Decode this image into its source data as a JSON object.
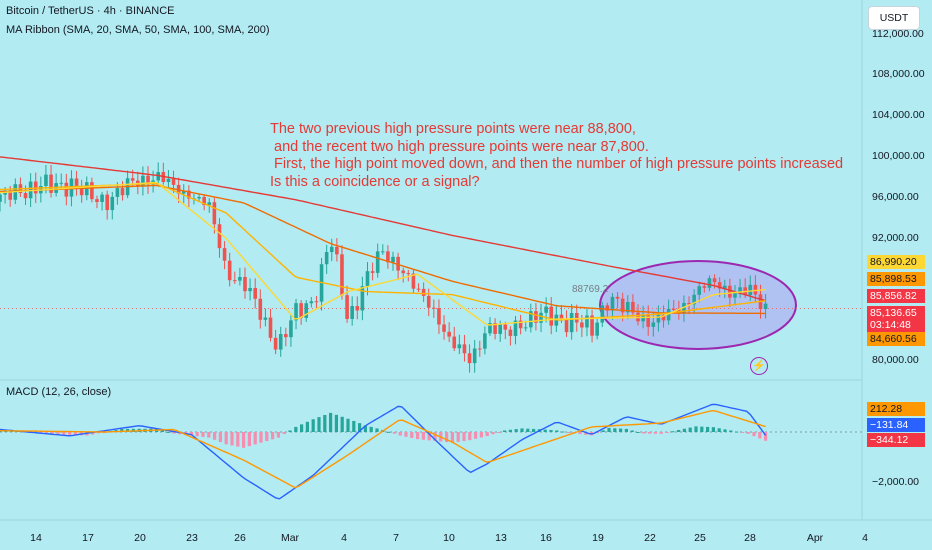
{
  "header": {
    "symbol_line": "Bitcoin / TetherUS · 4h · BINANCE",
    "indicator_line": "MA Ribbon (SMA, 20, SMA, 50, SMA, 100, SMA, 200)"
  },
  "currency_button": "USDT",
  "annotation_text": "The two previous high pressure points were near 88,800,\n and the recent two high pressure points were near 87,800.\n First, the high point moved down, and then the number of high pressure points increased\nIs this a coincidence or a signal?",
  "marker_label": "88769.2",
  "macd_label": "MACD (12, 26, close)",
  "price_axis": {
    "ticks": [
      {
        "label": "112,000.00",
        "value": 112000
      },
      {
        "label": "108,000.00",
        "value": 108000
      },
      {
        "label": "104,000.00",
        "value": 104000
      },
      {
        "label": "100,000.00",
        "value": 100000
      },
      {
        "label": "96,000.00",
        "value": 96000
      },
      {
        "label": "92,000.00",
        "value": 92000
      },
      {
        "label": "80,000.00",
        "value": 80000
      }
    ],
    "badges": [
      {
        "label": "86,990.20",
        "color": "#fdd835",
        "text_color": "#131722"
      },
      {
        "label": "85,898.53",
        "color": "#ff9800",
        "text_color": "#131722"
      },
      {
        "label": "85,856.82",
        "color": "#f23645",
        "text_color": "#ffffff"
      },
      {
        "label": "85,136.65",
        "color": "#f23645",
        "text_color": "#ffffff"
      },
      {
        "label": "03:14:48",
        "color": "#f23645",
        "text_color": "#ffffff"
      },
      {
        "label": "84,660.56",
        "color": "#ff9800",
        "text_color": "#131722"
      }
    ]
  },
  "macd_axis": {
    "ticks": [
      {
        "label": "−2,000.00",
        "value": -2000
      }
    ],
    "badges": [
      {
        "label": "212.28",
        "color": "#ff9800",
        "text_color": "#131722"
      },
      {
        "label": "−131.84",
        "color": "#2962ff",
        "text_color": "#ffffff"
      },
      {
        "label": "−344.12",
        "color": "#f23645",
        "text_color": "#ffffff"
      }
    ]
  },
  "time_axis": [
    "14",
    "17",
    "20",
    "23",
    "26",
    "Mar",
    "4",
    "7",
    "10",
    "13",
    "16",
    "19",
    "22",
    "25",
    "28",
    "Apr",
    "4"
  ],
  "colors": {
    "background": "#b2ebf2",
    "up": "#26a69a",
    "down": "#ef5350",
    "sma20": "#fdd835",
    "sma50": "#ffb300",
    "sma100": "#ef6c00",
    "sma200": "#e53935",
    "macd_line": "#2962ff",
    "signal_line": "#ff9800",
    "highlight_ellipse": "#9c27b0"
  },
  "chart_data": [
    {
      "type": "candlestick",
      "title": "Bitcoin / TetherUS · 4h · BINANCE",
      "ylim": [
        78500,
        114000
      ],
      "x_date_range": [
        "Feb 12",
        "Mar 28"
      ],
      "price_path": [
        {
          "date": "Feb 12",
          "price": 95600
        },
        {
          "date": "Feb 13",
          "price": 97000
        },
        {
          "date": "Feb 14",
          "price": 96800
        },
        {
          "date": "Feb 15",
          "price": 97200
        },
        {
          "date": "Feb 16",
          "price": 97500
        },
        {
          "date": "Feb 17",
          "price": 96200
        },
        {
          "date": "Feb 18",
          "price": 95800
        },
        {
          "date": "Feb 19",
          "price": 96600
        },
        {
          "date": "Feb 20",
          "price": 97800
        },
        {
          "date": "Feb 21",
          "price": 98200
        },
        {
          "date": "Feb 22",
          "price": 96800
        },
        {
          "date": "Feb 23",
          "price": 96500
        },
        {
          "date": "Feb 24",
          "price": 95000
        },
        {
          "date": "Feb 25",
          "price": 89000
        },
        {
          "date": "Feb 26",
          "price": 87500
        },
        {
          "date": "Feb 27",
          "price": 84500
        },
        {
          "date": "Feb 28",
          "price": 81500
        },
        {
          "date": "Mar 1",
          "price": 84500
        },
        {
          "date": "Mar 2",
          "price": 86000
        },
        {
          "date": "Mar 3",
          "price": 92000
        },
        {
          "date": "Mar 4",
          "price": 84000
        },
        {
          "date": "Mar 5",
          "price": 88000
        },
        {
          "date": "Mar 6",
          "price": 90500
        },
        {
          "date": "Mar 7",
          "price": 89500
        },
        {
          "date": "Mar 8",
          "price": 86500
        },
        {
          "date": "Mar 9",
          "price": 85000
        },
        {
          "date": "Mar 10",
          "price": 81500
        },
        {
          "date": "Mar 11",
          "price": 80000
        },
        {
          "date": "Mar 12",
          "price": 83500
        },
        {
          "date": "Mar 13",
          "price": 82500
        },
        {
          "date": "Mar 14",
          "price": 84000
        },
        {
          "date": "Mar 15",
          "price": 84300
        },
        {
          "date": "Mar 16",
          "price": 84200
        },
        {
          "date": "Mar 17",
          "price": 84000
        },
        {
          "date": "Mar 18",
          "price": 82800
        },
        {
          "date": "Mar 19",
          "price": 86500
        },
        {
          "date": "Mar 20",
          "price": 84800
        },
        {
          "date": "Mar 21",
          "price": 84200
        },
        {
          "date": "Mar 22",
          "price": 84000
        },
        {
          "date": "Mar 23",
          "price": 85000
        },
        {
          "date": "Mar 24",
          "price": 87000
        },
        {
          "date": "Mar 25",
          "price": 87500
        },
        {
          "date": "Mar 26",
          "price": 87000
        },
        {
          "date": "Mar 27",
          "price": 86800
        },
        {
          "date": "Mar 28",
          "price": 85100
        }
      ],
      "series": [
        {
          "name": "SMA 200",
          "color": "#e53935",
          "values": [
            {
              "date": "Feb 12",
              "price": 100000
            },
            {
              "date": "Feb 21",
              "price": 98200
            },
            {
              "date": "Mar 1",
              "price": 95800
            },
            {
              "date": "Mar 10",
              "price": 92300
            },
            {
              "date": "Mar 19",
              "price": 89300
            },
            {
              "date": "Mar 25",
              "price": 87400
            },
            {
              "date": "Mar 28",
              "price": 85900
            }
          ]
        },
        {
          "name": "SMA 100",
          "color": "#ef6c00",
          "values": [
            {
              "date": "Feb 12",
              "price": 96600
            },
            {
              "date": "Feb 21",
              "price": 97200
            },
            {
              "date": "Feb 26",
              "price": 95500
            },
            {
              "date": "Mar 3",
              "price": 91500
            },
            {
              "date": "Mar 10",
              "price": 87800
            },
            {
              "date": "Mar 16",
              "price": 85400
            },
            {
              "date": "Mar 22",
              "price": 84700
            },
            {
              "date": "Mar 28",
              "price": 84660
            }
          ]
        },
        {
          "name": "SMA 50",
          "color": "#ffb300",
          "values": [
            {
              "date": "Feb 12",
              "price": 96800
            },
            {
              "date": "Feb 21",
              "price": 97400
            },
            {
              "date": "Feb 25",
              "price": 94500
            },
            {
              "date": "Mar 1",
              "price": 88200
            },
            {
              "date": "Mar 5",
              "price": 86800
            },
            {
              "date": "Mar 10",
              "price": 86500
            },
            {
              "date": "Mar 16",
              "price": 84000
            },
            {
              "date": "Mar 22",
              "price": 84600
            },
            {
              "date": "Mar 28",
              "price": 85898
            }
          ]
        },
        {
          "name": "SMA 20",
          "color": "#fdd835",
          "values": [
            {
              "date": "Feb 12",
              "price": 96500
            },
            {
              "date": "Feb 21",
              "price": 97500
            },
            {
              "date": "Feb 25",
              "price": 92000
            },
            {
              "date": "Mar 1",
              "price": 84000
            },
            {
              "date": "Mar 4",
              "price": 86800
            },
            {
              "date": "Mar 8",
              "price": 88500
            },
            {
              "date": "Mar 12",
              "price": 83500
            },
            {
              "date": "Mar 16",
              "price": 84100
            },
            {
              "date": "Mar 22",
              "price": 84300
            },
            {
              "date": "Mar 25",
              "price": 86500
            },
            {
              "date": "Mar 28",
              "price": 86990
            }
          ]
        }
      ]
    },
    {
      "type": "bar",
      "title": "MACD (12, 26, close)",
      "ylim": [
        -2900,
        1500
      ],
      "histogram": [
        {
          "date": "Feb 13",
          "value": 60
        },
        {
          "date": "Feb 15",
          "value": -90
        },
        {
          "date": "Feb 17",
          "value": -140
        },
        {
          "date": "Feb 19",
          "value": 120
        },
        {
          "date": "Feb 21",
          "value": 130
        },
        {
          "date": "Feb 22",
          "value": -60
        },
        {
          "date": "Feb 24",
          "value": -220
        },
        {
          "date": "Feb 25",
          "value": -480
        },
        {
          "date": "Feb 26",
          "value": -620
        },
        {
          "date": "Feb 27",
          "value": -420
        },
        {
          "date": "Feb 28",
          "value": -220
        },
        {
          "date": "Mar 1",
          "value": 200
        },
        {
          "date": "Mar 2",
          "value": 500
        },
        {
          "date": "Mar 3",
          "value": 750
        },
        {
          "date": "Mar 4",
          "value": 520
        },
        {
          "date": "Mar 5",
          "value": 260
        },
        {
          "date": "Mar 6",
          "value": 80
        },
        {
          "date": "Mar 7",
          "value": -140
        },
        {
          "date": "Mar 8",
          "value": -280
        },
        {
          "date": "Mar 10",
          "value": -420
        },
        {
          "date": "Mar 11",
          "value": -320
        },
        {
          "date": "Mar 12",
          "value": -160
        },
        {
          "date": "Mar 13",
          "value": 60
        },
        {
          "date": "Mar 14",
          "value": 140
        },
        {
          "date": "Mar 15",
          "value": 110
        },
        {
          "date": "Mar 16",
          "value": 60
        },
        {
          "date": "Mar 17",
          "value": -60
        },
        {
          "date": "Mar 18",
          "value": -130
        },
        {
          "date": "Mar 19",
          "value": 160
        },
        {
          "date": "Mar 20",
          "value": 120
        },
        {
          "date": "Mar 21",
          "value": -60
        },
        {
          "date": "Mar 22",
          "value": -70
        },
        {
          "date": "Mar 23",
          "value": 80
        },
        {
          "date": "Mar 24",
          "value": 220
        },
        {
          "date": "Mar 25",
          "value": 190
        },
        {
          "date": "Mar 26",
          "value": 60
        },
        {
          "date": "Mar 27",
          "value": -70
        },
        {
          "date": "Mar 28",
          "value": -344
        }
      ],
      "series": [
        {
          "name": "MACD",
          "color": "#2962ff",
          "values": [
            {
              "date": "Feb 12",
              "value": 100
            },
            {
              "date": "Feb 16",
              "value": -150
            },
            {
              "date": "Feb 20",
              "value": 250
            },
            {
              "date": "Feb 23",
              "value": -100
            },
            {
              "date": "Feb 26",
              "value": -1800
            },
            {
              "date": "Feb 28",
              "value": -2650
            },
            {
              "date": "Mar 2",
              "value": -1700
            },
            {
              "date": "Mar 5",
              "value": 250
            },
            {
              "date": "Mar 7",
              "value": 1050
            },
            {
              "date": "Mar 9",
              "value": -300
            },
            {
              "date": "Mar 11",
              "value": -1600
            },
            {
              "date": "Mar 12",
              "value": -1250
            },
            {
              "date": "Mar 14",
              "value": -300
            },
            {
              "date": "Mar 16",
              "value": 400
            },
            {
              "date": "Mar 18",
              "value": -100
            },
            {
              "date": "Mar 20",
              "value": 600
            },
            {
              "date": "Mar 22",
              "value": 300
            },
            {
              "date": "Mar 25",
              "value": 1100
            },
            {
              "date": "Mar 27",
              "value": 800
            },
            {
              "date": "Mar 28",
              "value": -132
            }
          ]
        },
        {
          "name": "Signal",
          "color": "#ff9800",
          "values": [
            {
              "date": "Feb 12",
              "value": 50
            },
            {
              "date": "Feb 18",
              "value": 0
            },
            {
              "date": "Feb 22",
              "value": 100
            },
            {
              "date": "Feb 26",
              "value": -1100
            },
            {
              "date": "Mar 1",
              "value": -2200
            },
            {
              "date": "Mar 4",
              "value": -900
            },
            {
              "date": "Mar 7",
              "value": 500
            },
            {
              "date": "Mar 10",
              "value": -400
            },
            {
              "date": "Mar 12",
              "value": -1200
            },
            {
              "date": "Mar 15",
              "value": -500
            },
            {
              "date": "Mar 18",
              "value": 200
            },
            {
              "date": "Mar 22",
              "value": 350
            },
            {
              "date": "Mar 25",
              "value": 850
            },
            {
              "date": "Mar 28",
              "value": 212
            }
          ]
        }
      ]
    }
  ]
}
